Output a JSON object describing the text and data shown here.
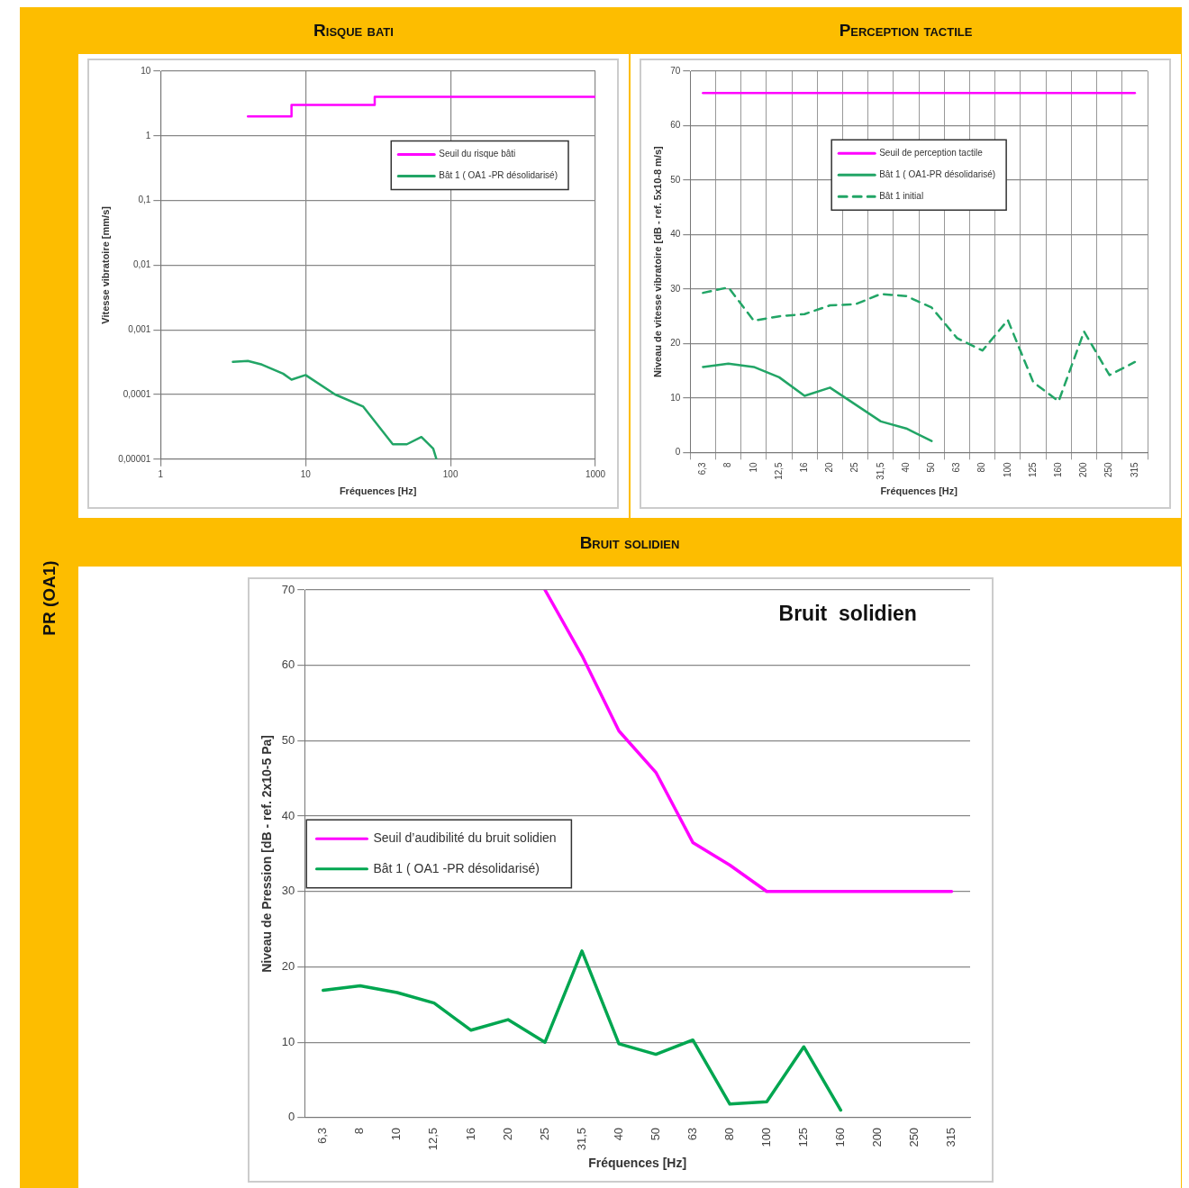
{
  "chart_data": [
    {
      "type": "line",
      "title": "Risque bati",
      "xlabel": "Fréquences [Hz]",
      "ylabel": "Vitesse vibratoire [mm/s]",
      "annotations": [
        "PR (OA1)"
      ],
      "log": "xy",
      "xlim": [
        1,
        1000
      ],
      "xticks": [
        1,
        10,
        100,
        1000
      ],
      "ylim": [
        1e-05,
        10
      ],
      "yticks": [
        {
          "value": 1e-05,
          "label": "0,00001"
        },
        {
          "value": 0.0001,
          "label": "0,0001"
        },
        {
          "value": 0.001,
          "label": "0,001"
        },
        {
          "value": 0.01,
          "label": "0,01"
        },
        {
          "value": 0.1,
          "label": "0,1"
        },
        1,
        10
      ],
      "grid": true,
      "legend": "top right",
      "marker": "none",
      "series": [
        {
          "name": "Seuil du risque bâti",
          "color": "#ff00ff",
          "x": [
            4,
            8,
            8,
            30,
            30,
            1000
          ],
          "values": [
            2,
            2,
            3,
            3,
            4,
            4
          ]
        },
        {
          "name": "Bât 1 ( OA1 -PR désolidarisé)",
          "color": "#22a566",
          "x": [
            3.15,
            4,
            5,
            7,
            8,
            10,
            16,
            25,
            40,
            50,
            63,
            76,
            80
          ],
          "values": [
            0.00032,
            0.00033,
            0.00029,
            0.00021,
            0.00017,
            0.0002,
            0.0001,
            6.5e-05,
            1.7e-05,
            1.7e-05,
            2.2e-05,
            1.45e-05,
            1e-05
          ]
        }
      ]
    },
    {
      "type": "line",
      "title": "Perception tactile",
      "xlabel": "Fréquences [Hz]",
      "ylabel": "Niveau de vitesse vibratoire [dB - ref. 5x10-8 m/s]",
      "categories": [
        "6,3",
        "8",
        "10",
        "12,5",
        "16",
        "20",
        "25",
        "31,5",
        "40",
        "50",
        "63",
        "80",
        "100",
        "125",
        "160",
        "200",
        "250",
        "315"
      ],
      "ylim": [
        0,
        70
      ],
      "yticks": [
        0,
        10,
        20,
        30,
        40,
        50,
        60,
        70
      ],
      "grid": true,
      "legend": "top",
      "marker": "none",
      "series": [
        {
          "name": "Seuil de perception tactile",
          "color": "#ff00ff",
          "values": [
            66,
            66,
            66,
            66,
            66,
            66,
            66,
            66,
            66,
            66,
            66,
            66,
            66,
            66,
            66,
            66,
            66,
            66
          ]
        },
        {
          "name": "Bât 1 ( OA1-PR désolidarisé)",
          "color": "#22a566",
          "values": [
            15.7,
            16.3,
            15.7,
            13.8,
            10.4,
            11.9,
            8.8,
            5.7,
            4.4,
            2.1,
            null,
            null,
            null,
            null,
            null,
            null,
            null,
            null
          ]
        },
        {
          "name": "Bât 1 initial",
          "color": "#22a566",
          "line_style": "dashed",
          "values": [
            29.3,
            30.3,
            24.2,
            25,
            25.4,
            27,
            27.2,
            29.1,
            28.7,
            26.6,
            21,
            18.7,
            24.3,
            12.9,
            9.4,
            22.2,
            14.2,
            16.6
          ]
        }
      ]
    },
    {
      "type": "line",
      "title": "Bruit solidien",
      "subtitle": "Bruit  solidien",
      "xlabel": "Fréquences [Hz]",
      "ylabel": "Niveau de Pression [dB - ref. 2x10-5 Pa]",
      "categories": [
        "6,3",
        "8",
        "10",
        "12,5",
        "16",
        "20",
        "25",
        "31,5",
        "40",
        "50",
        "63",
        "80",
        "100",
        "125",
        "160",
        "200",
        "250",
        "315"
      ],
      "ylim": [
        0,
        70
      ],
      "yticks": [
        0,
        10,
        20,
        30,
        40,
        50,
        60,
        70
      ],
      "grid": "y",
      "legend": "center left",
      "marker": "none",
      "series": [
        {
          "name": "Seuil d’audibilité du bruit solidien",
          "color": "#ff00ff",
          "values": [
            null,
            null,
            null,
            null,
            null,
            null,
            70,
            61.3,
            51.3,
            45.8,
            36.5,
            33.5,
            30,
            30,
            30,
            30,
            30,
            30
          ]
        },
        {
          "name": "Bât 1 ( OA1 -PR désolidarisé)",
          "color": "#00a650",
          "values": [
            16.9,
            17.5,
            16.6,
            15.2,
            11.6,
            13,
            10,
            22.1,
            9.8,
            8.4,
            10.3,
            1.8,
            2.1,
            9.4,
            1,
            null,
            null,
            null
          ]
        }
      ]
    }
  ]
}
